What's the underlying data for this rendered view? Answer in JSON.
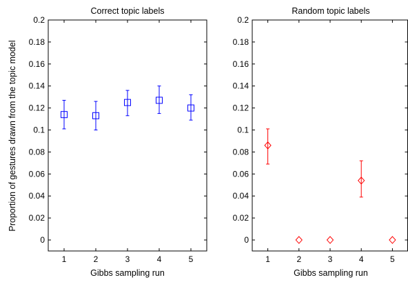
{
  "figure": {
    "shared_ylabel": "Proportion of gestures drawn from the topic model"
  },
  "chart_data": [
    {
      "type": "scatter",
      "title": "Correct topic labels",
      "xlabel": "Gibbs sampling run",
      "ylabel": "Proportion of gestures drawn from the topic model",
      "xlim": [
        0.5,
        5.5
      ],
      "ylim": [
        -0.01,
        0.2
      ],
      "xticks": [
        "1",
        "2",
        "3",
        "4",
        "5"
      ],
      "yticks": [
        "0",
        "0.02",
        "0.04",
        "0.06",
        "0.08",
        "0.1",
        "0.12",
        "0.14",
        "0.16",
        "0.18",
        "0.2"
      ],
      "grid": false,
      "marker": "square",
      "color": "#0000ff",
      "points": [
        {
          "x": 1,
          "y": 0.114,
          "lower": 0.101,
          "upper": 0.127
        },
        {
          "x": 2,
          "y": 0.113,
          "lower": 0.1,
          "upper": 0.126
        },
        {
          "x": 3,
          "y": 0.125,
          "lower": 0.113,
          "upper": 0.136
        },
        {
          "x": 4,
          "y": 0.127,
          "lower": 0.115,
          "upper": 0.14
        },
        {
          "x": 5,
          "y": 0.12,
          "lower": 0.109,
          "upper": 0.132
        }
      ]
    },
    {
      "type": "scatter",
      "title": "Random topic labels",
      "xlabel": "Gibbs sampling run",
      "ylabel": "",
      "xlim": [
        0.5,
        5.5
      ],
      "ylim": [
        -0.01,
        0.2
      ],
      "xticks": [
        "1",
        "2",
        "3",
        "4",
        "5"
      ],
      "yticks": [
        "0",
        "0.02",
        "0.04",
        "0.06",
        "0.08",
        "0.1",
        "0.12",
        "0.14",
        "0.16",
        "0.18",
        "0.2"
      ],
      "grid": false,
      "marker": "diamond",
      "color": "#ff0000",
      "points": [
        {
          "x": 1,
          "y": 0.086,
          "lower": 0.069,
          "upper": 0.101
        },
        {
          "x": 2,
          "y": 0.0,
          "lower": 0.0,
          "upper": 0.0
        },
        {
          "x": 3,
          "y": 0.0,
          "lower": 0.0,
          "upper": 0.0
        },
        {
          "x": 4,
          "y": 0.054,
          "lower": 0.039,
          "upper": 0.072
        },
        {
          "x": 5,
          "y": 0.0,
          "lower": 0.0,
          "upper": 0.0
        }
      ]
    }
  ]
}
